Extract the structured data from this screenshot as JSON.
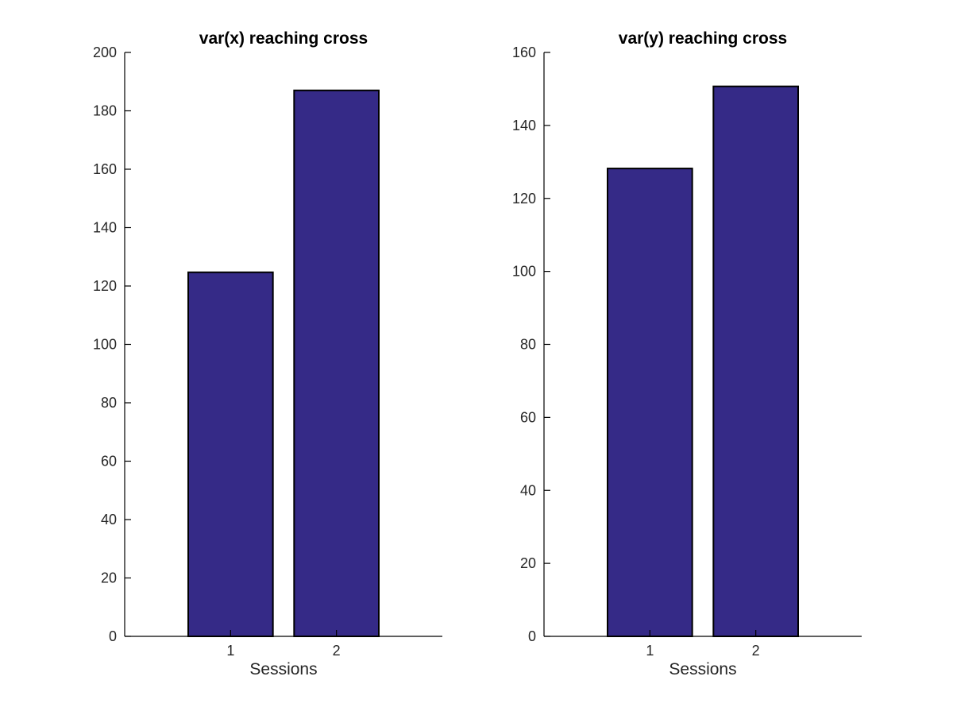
{
  "chart_data": [
    {
      "type": "bar",
      "title": "var(x) reaching cross",
      "xlabel": "Sessions",
      "ylabel": "",
      "categories": [
        "1",
        "2"
      ],
      "values": [
        124.7,
        187.0
      ],
      "ylim": [
        0,
        200
      ],
      "yticks": [
        0,
        20,
        40,
        60,
        80,
        100,
        120,
        140,
        160,
        180,
        200
      ],
      "bar_color": "#352a87",
      "grid": false
    },
    {
      "type": "bar",
      "title": "var(y) reaching cross",
      "xlabel": "Sessions",
      "ylabel": "",
      "categories": [
        "1",
        "2"
      ],
      "values": [
        128.2,
        150.7
      ],
      "ylim": [
        0,
        160
      ],
      "yticks": [
        0,
        20,
        40,
        60,
        80,
        100,
        120,
        140,
        160
      ],
      "bar_color": "#352a87",
      "grid": false
    }
  ]
}
